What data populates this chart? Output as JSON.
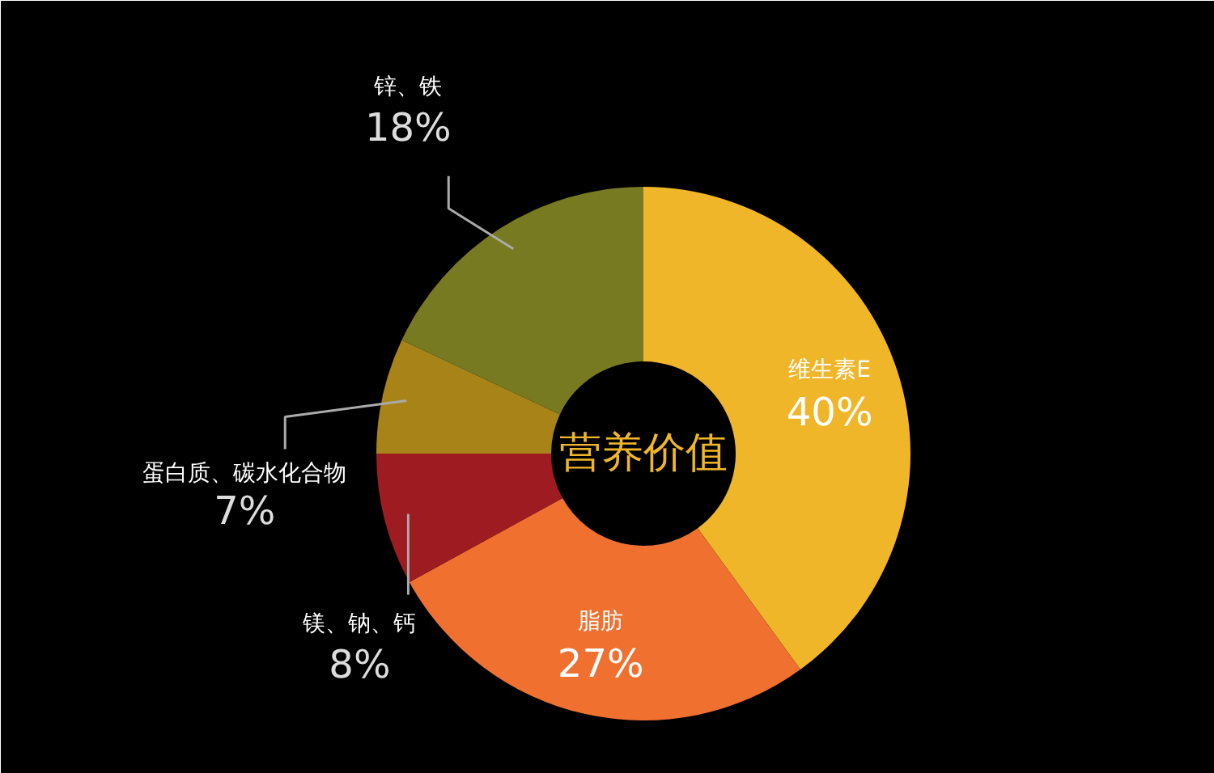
{
  "chart_data": {
    "type": "donut",
    "title": "营养价值",
    "categories": [
      "维生素E",
      "脂肪",
      "镁、钠、钙",
      "蛋白质、碳水化合物",
      "锌、铁"
    ],
    "values": [
      40,
      27,
      8,
      7,
      18
    ],
    "value_labels": [
      "40%",
      "27%",
      "8%",
      "7%",
      "18%"
    ],
    "colors": [
      "#f0b62a",
      "#f07030",
      "#9e1b22",
      "#a88418",
      "#787a22"
    ]
  }
}
